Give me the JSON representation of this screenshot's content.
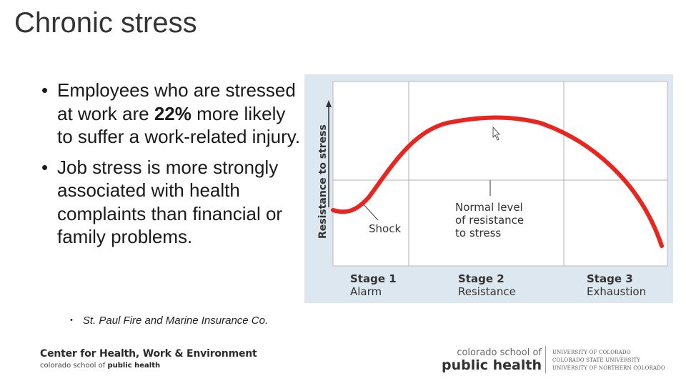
{
  "slide": {
    "title": "Chronic stress"
  },
  "bullets": [
    {
      "before": "Employees who are stressed at work are ",
      "highlight": "22%",
      "after": " more likely to suffer a work-related injury."
    },
    {
      "before": "Job stress is more strongly associated with health complaints than financial or family problems.",
      "highlight": "",
      "after": ""
    }
  ],
  "bullet_glyph": "•",
  "source": "St. Paul Fire and Marine Insurance Co.",
  "figure": {
    "y_axis_label": "Resistance to stress",
    "shock_label": "Shock",
    "normal_label": [
      "Normal level",
      "of resistance",
      "to stress"
    ],
    "stages": [
      {
        "name": "Stage 1",
        "phase": "Alarm"
      },
      {
        "name": "Stage 2",
        "phase": "Resistance"
      },
      {
        "name": "Stage 3",
        "phase": "Exhaustion"
      }
    ],
    "curve_color": "#e8251f"
  },
  "footer": {
    "center_name": "Center for Health, Work & Environment",
    "center_sub_prefix": "colorado school of ",
    "center_sub_bold": "public health",
    "csph_line1": "colorado school of",
    "csph_line2": "public health",
    "universities": [
      "UNIVERSITY OF COLORADO",
      "COLORADO STATE UNIVERSITY",
      "UNIVERSITY OF NORTHERN COLORADO"
    ]
  }
}
